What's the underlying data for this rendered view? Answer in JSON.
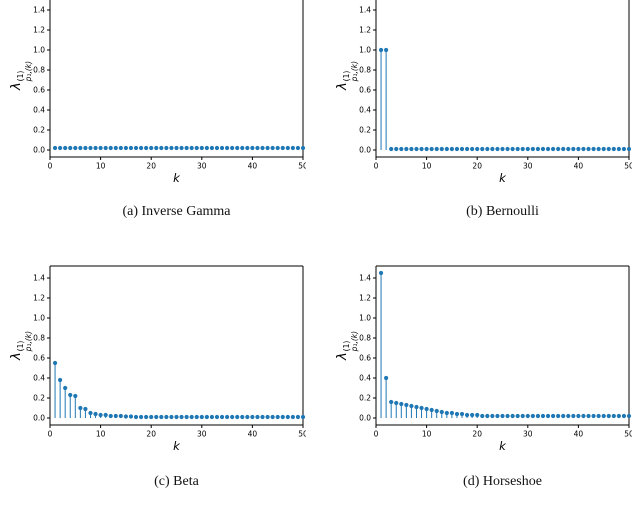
{
  "figure": {
    "accent_color": "#1f77b4",
    "axis_color": "#000000",
    "xlabel": "k",
    "ylabel": {
      "base": "λ",
      "sup": "(1)",
      "sub": "p₁,(k)"
    },
    "captions": [
      "(a) Inverse Gamma",
      "(b) Bernoulli",
      "(c) Beta",
      "(d) Horseshoe"
    ]
  },
  "chart_data": [
    {
      "type": "stem",
      "title": "Inverse Gamma",
      "xlabel": "k",
      "ylabel": "lambda^(1)_p1,(k)",
      "xlim": [
        0,
        50
      ],
      "ylim": [
        -0.07,
        1.5
      ],
      "xticks": [
        0,
        10,
        20,
        30,
        40,
        50
      ],
      "yticks": [
        "0.0",
        "0.2",
        "0.4",
        "0.6",
        "0.8",
        "1.0",
        "1.2",
        "1.4"
      ],
      "cropped_top": true,
      "x_start": 1,
      "values": [
        0.02,
        0.02,
        0.02,
        0.02,
        0.02,
        0.02,
        0.02,
        0.02,
        0.02,
        0.02,
        0.02,
        0.02,
        0.02,
        0.02,
        0.02,
        0.02,
        0.02,
        0.02,
        0.02,
        0.02,
        0.02,
        0.02,
        0.02,
        0.02,
        0.02,
        0.02,
        0.02,
        0.02,
        0.02,
        0.02,
        0.02,
        0.02,
        0.02,
        0.02,
        0.02,
        0.02,
        0.02,
        0.02,
        0.02,
        0.02,
        0.02,
        0.02,
        0.02,
        0.02,
        0.02,
        0.02,
        0.02,
        0.02,
        0.02,
        0.02
      ]
    },
    {
      "type": "stem",
      "title": "Bernoulli",
      "xlabel": "k",
      "ylabel": "lambda^(1)_p1,(k)",
      "xlim": [
        0,
        50
      ],
      "ylim": [
        -0.07,
        1.5
      ],
      "xticks": [
        0,
        10,
        20,
        30,
        40,
        50
      ],
      "yticks": [
        "0.0",
        "0.2",
        "0.4",
        "0.6",
        "0.8",
        "1.0",
        "1.2",
        "1.4"
      ],
      "cropped_top": true,
      "x_start": 1,
      "values": [
        1.0,
        1.0,
        0.01,
        0.01,
        0.01,
        0.01,
        0.01,
        0.01,
        0.01,
        0.01,
        0.01,
        0.01,
        0.01,
        0.01,
        0.01,
        0.01,
        0.01,
        0.01,
        0.01,
        0.01,
        0.01,
        0.01,
        0.01,
        0.01,
        0.01,
        0.01,
        0.01,
        0.01,
        0.01,
        0.01,
        0.01,
        0.01,
        0.01,
        0.01,
        0.01,
        0.01,
        0.01,
        0.01,
        0.01,
        0.01,
        0.01,
        0.01,
        0.01,
        0.01,
        0.01,
        0.01,
        0.01,
        0.01,
        0.01,
        0.01
      ]
    },
    {
      "type": "stem",
      "title": "Beta",
      "xlabel": "k",
      "ylabel": "lambda^(1)_p1,(k)",
      "xlim": [
        0,
        50
      ],
      "ylim": [
        -0.07,
        1.52
      ],
      "xticks": [
        0,
        10,
        20,
        30,
        40,
        50
      ],
      "yticks": [
        "0.0",
        "0.2",
        "0.4",
        "0.6",
        "0.8",
        "1.0",
        "1.2",
        "1.4"
      ],
      "cropped_top": false,
      "x_start": 1,
      "values": [
        0.55,
        0.38,
        0.3,
        0.23,
        0.22,
        0.1,
        0.09,
        0.05,
        0.04,
        0.03,
        0.03,
        0.02,
        0.02,
        0.02,
        0.015,
        0.015,
        0.01,
        0.01,
        0.01,
        0.01,
        0.01,
        0.01,
        0.01,
        0.01,
        0.01,
        0.01,
        0.01,
        0.01,
        0.01,
        0.01,
        0.01,
        0.01,
        0.01,
        0.01,
        0.01,
        0.01,
        0.01,
        0.01,
        0.01,
        0.01,
        0.01,
        0.01,
        0.01,
        0.01,
        0.01,
        0.01,
        0.01,
        0.01,
        0.01,
        0.01
      ]
    },
    {
      "type": "stem",
      "title": "Horseshoe",
      "xlabel": "k",
      "ylabel": "lambda^(1)_p1,(k)",
      "xlim": [
        0,
        50
      ],
      "ylim": [
        -0.07,
        1.52
      ],
      "xticks": [
        0,
        10,
        20,
        30,
        40,
        50
      ],
      "yticks": [
        "0.0",
        "0.2",
        "0.4",
        "0.6",
        "0.8",
        "1.0",
        "1.2",
        "1.4"
      ],
      "cropped_top": false,
      "x_start": 1,
      "values": [
        1.45,
        0.4,
        0.16,
        0.15,
        0.14,
        0.13,
        0.12,
        0.11,
        0.1,
        0.09,
        0.08,
        0.07,
        0.06,
        0.05,
        0.05,
        0.04,
        0.04,
        0.03,
        0.03,
        0.03,
        0.02,
        0.02,
        0.02,
        0.02,
        0.02,
        0.02,
        0.02,
        0.02,
        0.02,
        0.02,
        0.02,
        0.02,
        0.02,
        0.02,
        0.02,
        0.02,
        0.02,
        0.02,
        0.02,
        0.02,
        0.02,
        0.02,
        0.02,
        0.02,
        0.02,
        0.02,
        0.02,
        0.02,
        0.02,
        0.02
      ]
    }
  ]
}
